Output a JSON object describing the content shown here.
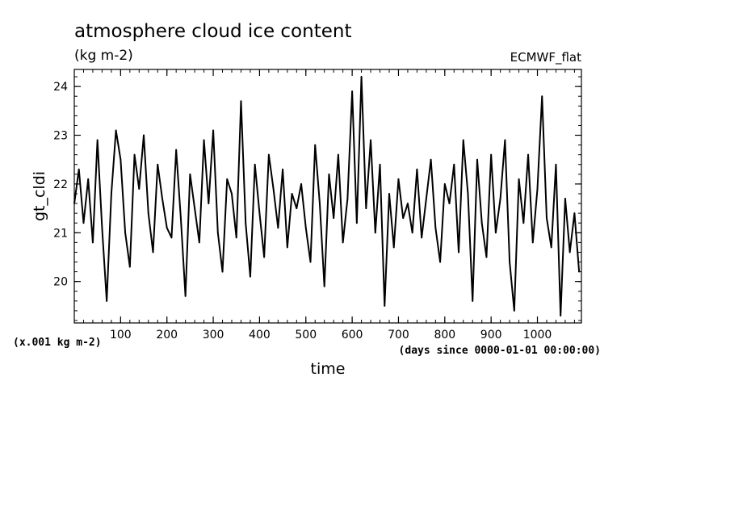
{
  "chart_data": {
    "type": "line",
    "title": "atmosphere cloud ice content",
    "subtitle": "(kg m-2)",
    "source_label": "ECMWF_flat",
    "xlabel": "time",
    "xunits": "(days since 0000-01-01 00:00:00)",
    "ylabel": "gt_cldi",
    "yscale_note": "(x.001 kg m-2)",
    "xlim": [
      0,
      1095
    ],
    "ylim": [
      19.15,
      24.35
    ],
    "x_ticks": [
      100,
      200,
      300,
      400,
      500,
      600,
      700,
      800,
      900,
      1000
    ],
    "y_ticks": [
      20,
      21,
      22,
      23,
      24
    ],
    "grid": false,
    "series": [
      {
        "color": "#000000",
        "x": [
          0,
          10,
          20,
          30,
          40,
          50,
          60,
          70,
          80,
          90,
          100,
          110,
          120,
          130,
          140,
          150,
          160,
          170,
          180,
          190,
          200,
          210,
          220,
          230,
          240,
          250,
          260,
          270,
          280,
          290,
          300,
          310,
          320,
          330,
          340,
          350,
          360,
          370,
          380,
          390,
          400,
          410,
          420,
          430,
          440,
          450,
          460,
          470,
          480,
          490,
          500,
          510,
          520,
          530,
          540,
          550,
          560,
          570,
          580,
          590,
          600,
          610,
          620,
          630,
          640,
          650,
          660,
          670,
          680,
          690,
          700,
          710,
          720,
          730,
          740,
          750,
          760,
          770,
          780,
          790,
          800,
          810,
          820,
          830,
          840,
          850,
          860,
          870,
          880,
          890,
          900,
          910,
          920,
          930,
          940,
          950,
          960,
          970,
          980,
          990,
          1000,
          1010,
          1020,
          1030,
          1040,
          1050,
          1060,
          1070,
          1080,
          1090
        ],
        "y": [
          21.6,
          22.3,
          21.2,
          22.1,
          20.8,
          22.9,
          21.1,
          19.6,
          21.8,
          23.1,
          22.5,
          21.0,
          20.3,
          22.6,
          21.9,
          23.0,
          21.4,
          20.6,
          22.4,
          21.7,
          21.1,
          20.9,
          22.7,
          21.3,
          19.7,
          22.2,
          21.5,
          20.8,
          22.9,
          21.6,
          23.1,
          21.0,
          20.2,
          22.1,
          21.8,
          20.9,
          23.7,
          21.2,
          20.1,
          22.4,
          21.4,
          20.5,
          22.6,
          21.9,
          21.1,
          22.3,
          20.7,
          21.8,
          21.5,
          22.0,
          21.1,
          20.4,
          22.8,
          21.6,
          19.9,
          22.2,
          21.3,
          22.6,
          20.8,
          21.7,
          23.9,
          21.2,
          24.2,
          21.5,
          22.9,
          21.0,
          22.4,
          19.5,
          21.8,
          20.7,
          22.1,
          21.3,
          21.6,
          21.0,
          22.3,
          20.9,
          21.7,
          22.5,
          21.1,
          20.4,
          22.0,
          21.6,
          22.4,
          20.6,
          22.9,
          21.8,
          19.6,
          22.5,
          21.2,
          20.5,
          22.6,
          21.0,
          21.7,
          22.9,
          20.4,
          19.4,
          22.1,
          21.2,
          22.6,
          20.8,
          21.9,
          23.8,
          21.3,
          20.7,
          22.4,
          19.3,
          21.7,
          20.6,
          21.4,
          20.2
        ]
      }
    ]
  }
}
